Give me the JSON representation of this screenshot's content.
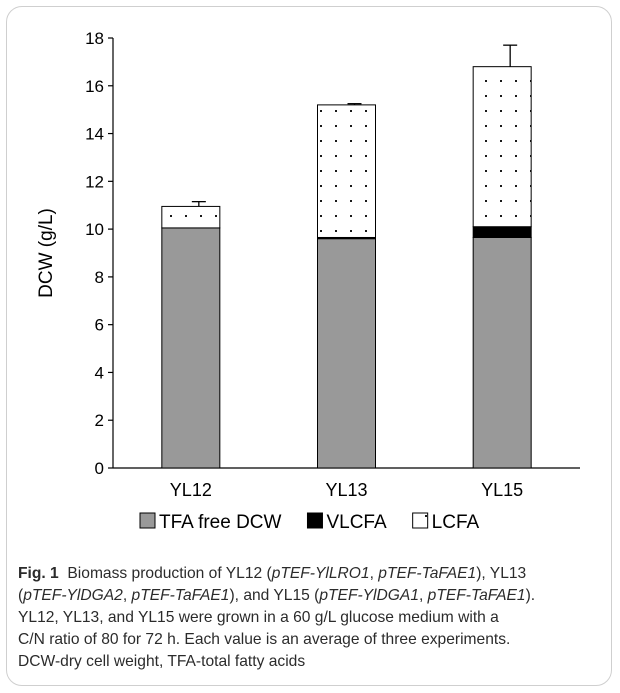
{
  "chart_data": {
    "type": "stacked-bar",
    "categories": [
      "YL12",
      "YL13",
      "YL15"
    ],
    "ylabel": "DCW (g/L)",
    "xlabel": "",
    "ylim": [
      0,
      18
    ],
    "yticks": [
      0,
      2,
      4,
      6,
      8,
      10,
      12,
      14,
      16,
      18
    ],
    "grid": false,
    "legend_position": "bottom",
    "series": [
      {
        "name": "TFA free DCW",
        "values": [
          10.05,
          9.6,
          9.65
        ],
        "fill": "gray",
        "color": "#999999"
      },
      {
        "name": "VLCFA",
        "values": [
          0.0,
          0.05,
          0.45
        ],
        "fill": "solid-black",
        "color": "#000000"
      },
      {
        "name": "LCFA",
        "values": [
          0.9,
          5.55,
          6.7
        ],
        "fill": "dotted",
        "color": "#ffffff"
      }
    ],
    "totals": [
      10.95,
      15.2,
      16.8
    ],
    "error_bars": [
      0.2,
      0.05,
      0.9
    ]
  },
  "caption": {
    "label": "Fig. 1",
    "line1": [
      {
        "t": "Biomass production of YL12 (",
        "i": false
      },
      {
        "t": "pTEF-YlLRO1",
        "i": true
      },
      {
        "t": ", ",
        "i": false
      },
      {
        "t": "pTEF-TaFAE1",
        "i": true
      },
      {
        "t": "), YL13",
        "i": false
      }
    ],
    "line2": [
      {
        "t": "(",
        "i": false
      },
      {
        "t": "pTEF-YlDGA2",
        "i": true
      },
      {
        "t": ", ",
        "i": false
      },
      {
        "t": "pTEF-TaFAE1",
        "i": true
      },
      {
        "t": "), and YL15 (",
        "i": false
      },
      {
        "t": "pTEF-YlDGA1",
        "i": true
      },
      {
        "t": ", ",
        "i": false
      },
      {
        "t": "pTEF-TaFAE1",
        "i": true
      },
      {
        "t": ").",
        "i": false
      }
    ],
    "line3": "YL12, YL13, and YL15 were grown in a 60 g/L glucose medium with a",
    "line4": "C/N ratio of 80 for 72 h. Each value is an average of three experiments.",
    "line5": "DCW-dry cell weight, TFA-total fatty acids"
  }
}
